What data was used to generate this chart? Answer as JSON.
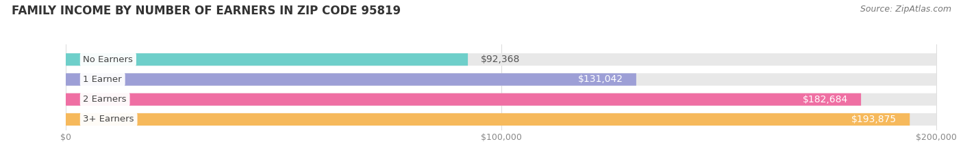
{
  "title": "FAMILY INCOME BY NUMBER OF EARNERS IN ZIP CODE 95819",
  "source": "Source: ZipAtlas.com",
  "categories": [
    "No Earners",
    "1 Earner",
    "2 Earners",
    "3+ Earners"
  ],
  "values": [
    92368,
    131042,
    182684,
    193875
  ],
  "bar_colors": [
    "#6ecfca",
    "#9d9fd6",
    "#ef6fa3",
    "#f6b95c"
  ],
  "bar_bg_color": "#e8e8e8",
  "value_label_inside": [
    false,
    true,
    true,
    true
  ],
  "value_label_colors_inside": [
    "#555555",
    "#ffffff",
    "#ffffff",
    "#ffffff"
  ],
  "xlim_max": 200000,
  "xticks": [
    0,
    100000,
    200000
  ],
  "xtick_labels": [
    "$0",
    "$100,000",
    "$200,000"
  ],
  "background_color": "#ffffff",
  "title_fontsize": 12,
  "source_fontsize": 9,
  "bar_height": 0.62,
  "bar_label_fontsize": 10,
  "category_fontsize": 9.5,
  "category_label_color": "#444444"
}
